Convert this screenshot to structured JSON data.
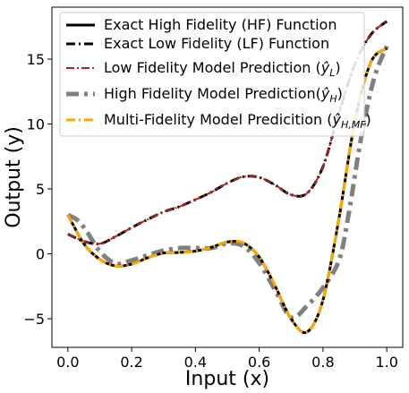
{
  "chart_data": {
    "type": "line",
    "xlabel": "Input (x)",
    "ylabel": "Output (y)",
    "xlim": [
      -0.05,
      1.05
    ],
    "ylim": [
      -7.2,
      19
    ],
    "xticks": [
      0.0,
      0.2,
      0.4,
      0.6,
      0.8,
      1.0
    ],
    "xtick_labels": [
      "0.0",
      "0.2",
      "0.4",
      "0.6",
      "0.8",
      "1.0"
    ],
    "yticks": [
      -5,
      0,
      5,
      10,
      15
    ],
    "ytick_labels": [
      "−5",
      "0",
      "5",
      "10",
      "15"
    ],
    "grid": false,
    "legend_position": "top-left",
    "series": [
      {
        "name": "Exact High Fidelity (HF) Function",
        "color": "#000000",
        "style": "solid",
        "x": [
          0.0,
          0.05,
          0.1,
          0.15,
          0.2,
          0.25,
          0.3,
          0.35,
          0.4,
          0.45,
          0.5,
          0.55,
          0.6,
          0.65,
          0.7,
          0.75,
          0.8,
          0.85,
          0.9,
          0.95,
          1.0
        ],
        "y": [
          3.03,
          0.79,
          -0.42,
          -0.93,
          -0.79,
          -0.3,
          0.06,
          0.11,
          0.21,
          0.5,
          0.91,
          0.84,
          -0.24,
          -2.48,
          -5.01,
          -6.02,
          -3.55,
          2.72,
          10.22,
          14.76,
          15.83
        ]
      },
      {
        "name": "Exact Low Fidelity (LF) Function",
        "color": "#000000",
        "style": "dashdot",
        "x": [
          0.0,
          0.05,
          0.1,
          0.15,
          0.2,
          0.25,
          0.3,
          0.35,
          0.4,
          0.45,
          0.5,
          0.55,
          0.6,
          0.65,
          0.7,
          0.75,
          0.8,
          0.85,
          0.9,
          0.95,
          1.0
        ],
        "y": [
          1.52,
          0.97,
          0.78,
          1.34,
          2.02,
          2.65,
          3.23,
          3.64,
          4.18,
          4.75,
          5.45,
          5.94,
          5.89,
          5.3,
          4.55,
          4.67,
          6.72,
          10.86,
          14.61,
          16.88,
          17.91
        ]
      },
      {
        "name": "Low Fidelity Model Prediction ($\\hat{y}_L$)",
        "color": "#b22222",
        "style": "dashdot",
        "x": [
          0.0,
          0.05,
          0.1,
          0.15,
          0.2,
          0.25,
          0.3,
          0.35,
          0.4,
          0.45,
          0.5,
          0.55,
          0.6,
          0.65,
          0.7,
          0.75,
          0.8,
          0.85,
          0.9,
          0.95,
          1.0
        ],
        "y": [
          1.52,
          0.97,
          0.78,
          1.34,
          2.02,
          2.65,
          3.23,
          3.64,
          4.18,
          4.75,
          5.45,
          5.94,
          5.89,
          5.3,
          4.55,
          4.67,
          6.72,
          10.86,
          14.61,
          16.88,
          17.91
        ]
      },
      {
        "name": "High Fidelity Model Prediction($\\hat{y}_H$)",
        "color": "#808080",
        "style": "dashdot",
        "x": [
          0.0,
          0.03,
          0.06,
          0.1,
          0.15,
          0.2,
          0.25,
          0.3,
          0.35,
          0.4,
          0.45,
          0.5,
          0.55,
          0.6,
          0.65,
          0.7,
          0.75,
          0.8,
          0.85,
          0.88,
          0.92,
          0.96,
          1.0
        ],
        "y": [
          3.0,
          2.6,
          1.7,
          0.2,
          -0.75,
          -0.5,
          -0.1,
          0.25,
          0.45,
          0.45,
          0.45,
          0.8,
          0.6,
          -0.7,
          -2.8,
          -4.9,
          -4.0,
          -2.6,
          -0.5,
          3.0,
          9.0,
          13.5,
          16.0
        ]
      },
      {
        "name": "Multi-Fidelity Model Predicition ($\\hat{y}_{H,MF}$)",
        "color": "#ffa500",
        "style": "dashdot",
        "x": [
          0.0,
          0.05,
          0.1,
          0.15,
          0.2,
          0.25,
          0.3,
          0.35,
          0.4,
          0.45,
          0.5,
          0.55,
          0.6,
          0.65,
          0.7,
          0.75,
          0.8,
          0.85,
          0.9,
          0.95,
          1.0
        ],
        "y": [
          3.03,
          0.79,
          -0.42,
          -0.93,
          -0.79,
          -0.3,
          0.06,
          0.11,
          0.21,
          0.5,
          0.91,
          0.84,
          -0.24,
          -2.48,
          -5.01,
          -6.02,
          -3.55,
          2.72,
          10.22,
          14.76,
          15.83
        ]
      }
    ]
  }
}
